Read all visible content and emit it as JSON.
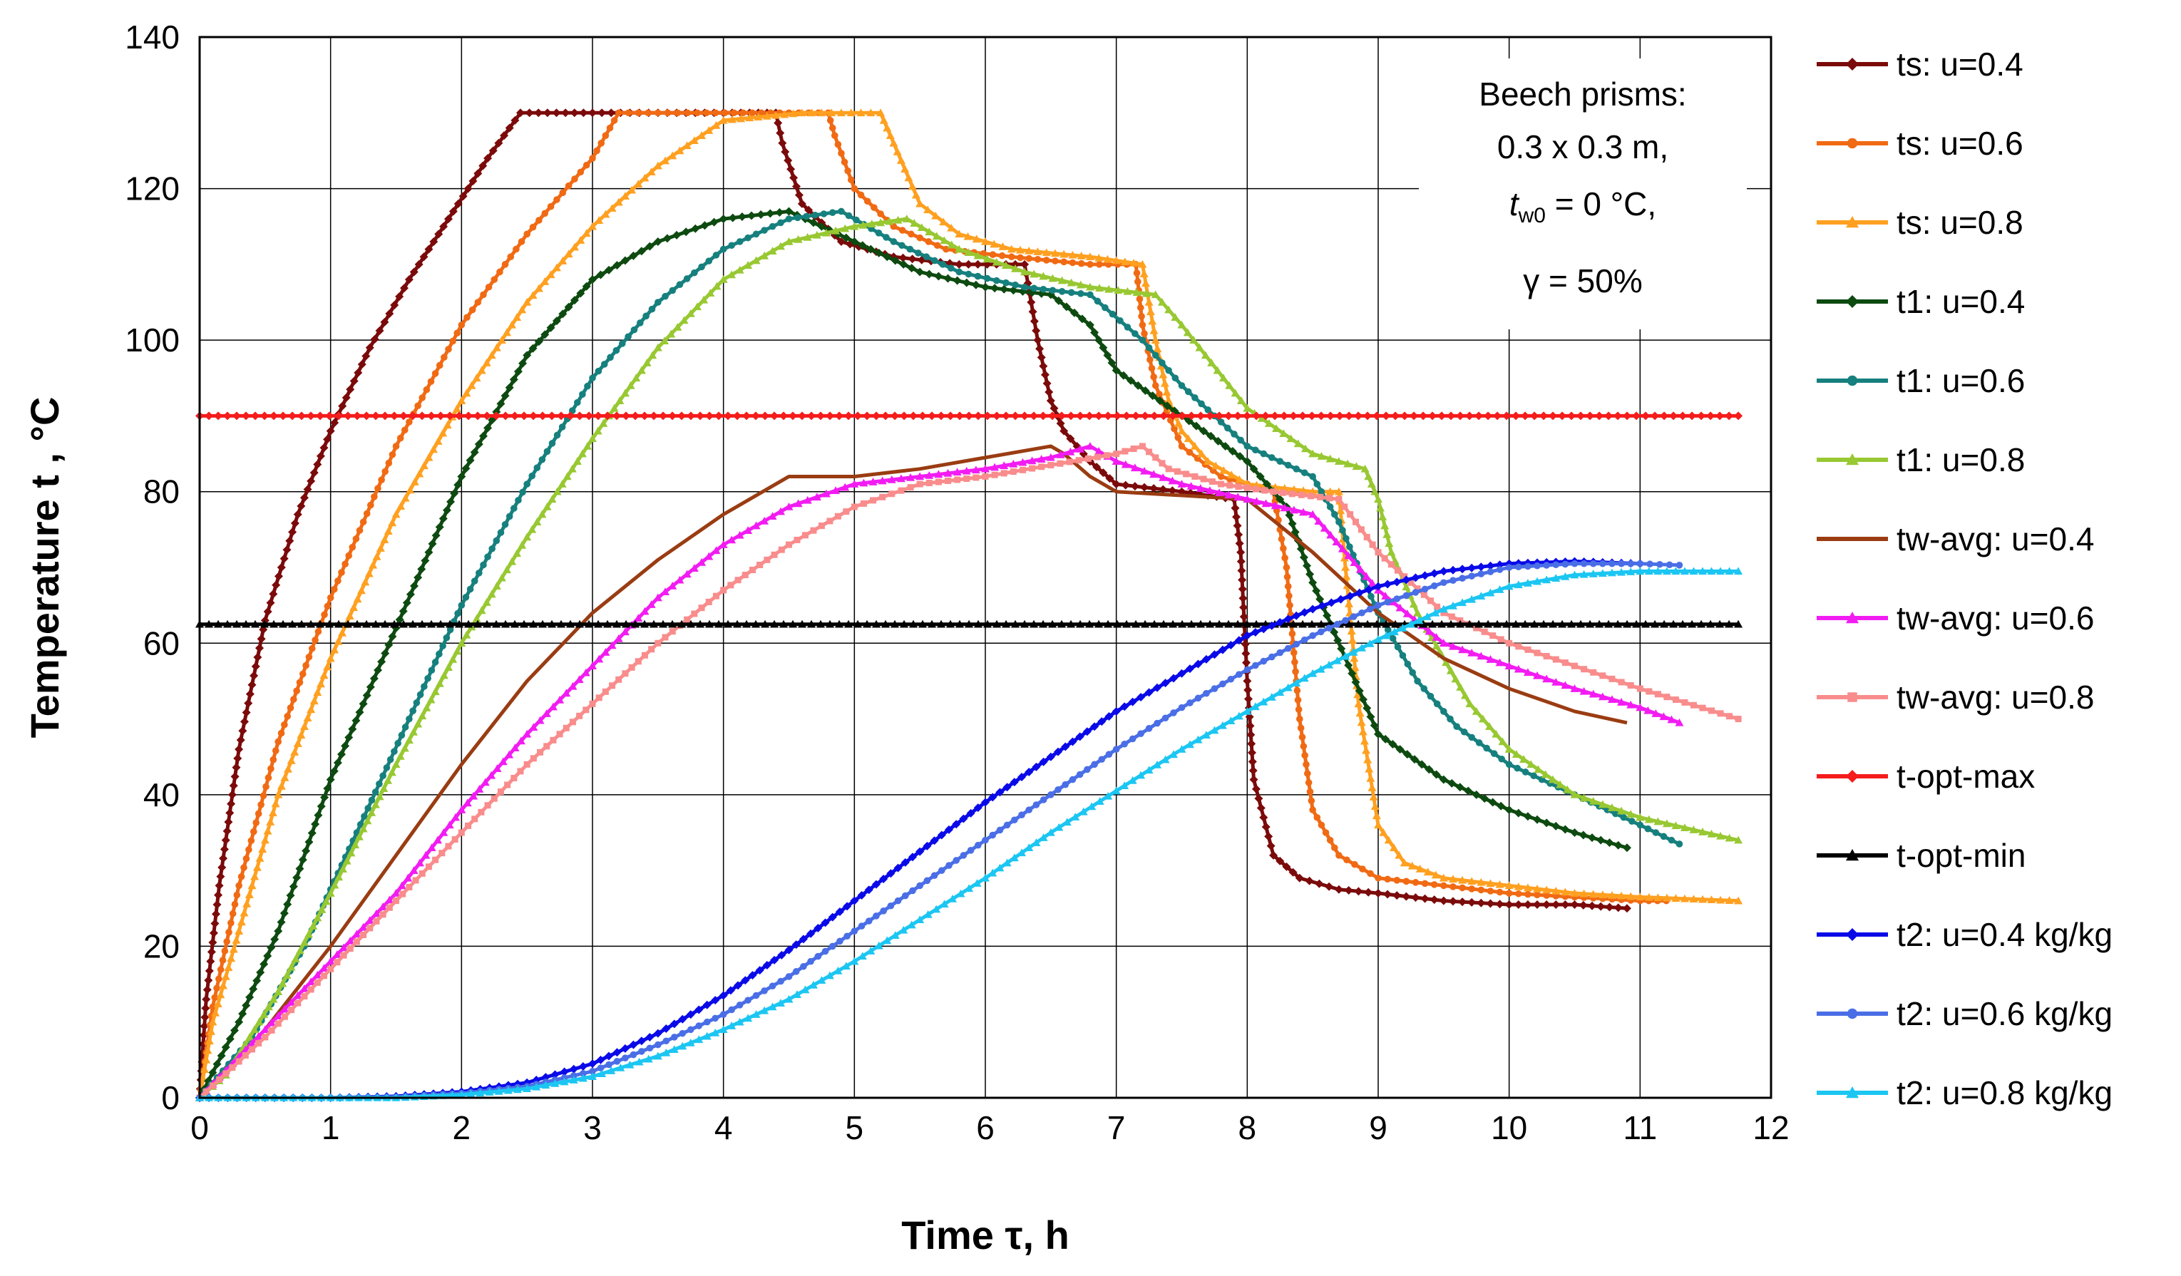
{
  "chart_data": {
    "type": "line",
    "title": "",
    "xlabel": "Time τ, h",
    "ylabel": "Temperature t , °C",
    "xlim": [
      0,
      12
    ],
    "ylim": [
      0,
      140
    ],
    "xticks": [
      0,
      1,
      2,
      3,
      4,
      5,
      6,
      7,
      8,
      9,
      10,
      11,
      12
    ],
    "yticks": [
      0,
      20,
      40,
      60,
      80,
      100,
      120,
      140
    ],
    "grid": true,
    "legend_position": "right",
    "annotation": {
      "line1": "Beech prisms:",
      "line2": "0.3 x 0.3 m,",
      "line3_var": "t",
      "line3_sub": "w0",
      "line3_rest": " = 0 °C,",
      "line4": "γ = 50%"
    },
    "series": [
      {
        "name": "ts:  u=0.4",
        "color": "#7b0a0a",
        "marker": "diamond",
        "x": [
          0,
          0.05,
          0.15,
          0.3,
          0.5,
          0.75,
          1.0,
          1.3,
          1.6,
          1.9,
          2.2,
          2.45,
          3.0,
          3.5,
          4.0,
          4.4,
          4.45,
          4.6,
          4.9,
          5.3,
          5.8,
          6.3,
          6.4,
          6.5,
          6.6,
          6.8,
          7.0,
          7.5,
          7.9,
          7.95,
          8.0,
          8.05,
          8.2,
          8.4,
          8.7,
          9.0,
          9.5,
          10.0,
          10.5,
          10.9
        ],
        "y": [
          0,
          13,
          28,
          46,
          63,
          77,
          88,
          99,
          108,
          116,
          124,
          130,
          130,
          130,
          130,
          130,
          126,
          118,
          113,
          111,
          110,
          110,
          100,
          92,
          88,
          84,
          81,
          80,
          79,
          72,
          55,
          42,
          32,
          29,
          27.5,
          27,
          26,
          25.5,
          25.5,
          25
        ]
      },
      {
        "name": "ts:  u=0.6",
        "color": "#f06a14",
        "marker": "circle",
        "x": [
          0,
          0.1,
          0.3,
          0.6,
          1.0,
          1.5,
          2.0,
          2.5,
          3.0,
          3.2,
          3.8,
          4.5,
          4.8,
          4.85,
          5.0,
          5.3,
          5.7,
          6.2,
          6.8,
          7.15,
          7.2,
          7.3,
          7.5,
          7.8,
          8.2,
          8.3,
          8.4,
          8.5,
          8.7,
          9.0,
          9.5,
          10.0,
          10.5,
          11.0,
          11.2
        ],
        "y": [
          0,
          12,
          28,
          47,
          66,
          86,
          102,
          114,
          124,
          130,
          130,
          130,
          130,
          127,
          120,
          115,
          112,
          111,
          110,
          110,
          102,
          94,
          86,
          82,
          80,
          70,
          50,
          38,
          32,
          29,
          28,
          27,
          26.5,
          26,
          26
        ]
      },
      {
        "name": "ts:  u=0.8",
        "color": "#ffa020",
        "marker": "triangle",
        "x": [
          0,
          0.1,
          0.3,
          0.6,
          1.0,
          1.5,
          2.0,
          2.5,
          3.0,
          3.5,
          4.0,
          4.6,
          5.2,
          5.3,
          5.5,
          5.8,
          6.2,
          6.8,
          7.2,
          7.3,
          7.4,
          7.5,
          7.7,
          8.0,
          8.5,
          8.7,
          8.75,
          8.85,
          9.0,
          9.2,
          9.5,
          10.0,
          10.5,
          11.0,
          11.75
        ],
        "y": [
          0,
          10,
          22,
          40,
          58,
          77,
          92,
          105,
          115,
          123,
          129,
          130,
          130,
          126,
          118,
          114,
          112,
          111,
          110,
          100,
          92,
          88,
          84,
          81,
          80,
          80,
          70,
          52,
          36,
          31,
          29,
          28,
          27,
          26.5,
          26
        ]
      },
      {
        "name": "t1: u=0.4",
        "color": "#0d4a10",
        "marker": "diamond",
        "x": [
          0,
          0.3,
          0.6,
          1.0,
          1.5,
          2.0,
          2.5,
          3.0,
          3.5,
          4.0,
          4.5,
          5.0,
          5.5,
          6.0,
          6.5,
          6.8,
          7.0,
          7.5,
          8.0,
          8.3,
          8.5,
          8.8,
          9.0,
          9.5,
          10.0,
          10.5,
          10.9
        ],
        "y": [
          0,
          10,
          22,
          42,
          62,
          82,
          98,
          108,
          113,
          116,
          117,
          113,
          109,
          107,
          106,
          102,
          96,
          90,
          84,
          78,
          68,
          56,
          48,
          42,
          38,
          35,
          33
        ]
      },
      {
        "name": "t1: u=0.6",
        "color": "#16807e",
        "marker": "circle",
        "x": [
          0,
          0.4,
          0.8,
          1.2,
          1.6,
          2.0,
          2.5,
          3.0,
          3.5,
          4.0,
          4.5,
          4.9,
          5.3,
          5.8,
          6.3,
          6.8,
          7.2,
          7.5,
          8.0,
          8.5,
          8.7,
          9.0,
          9.3,
          9.6,
          10.0,
          10.5,
          11.0,
          11.3
        ],
        "y": [
          0,
          8,
          20,
          35,
          50,
          65,
          81,
          95,
          105,
          112,
          116,
          117,
          113,
          109,
          107,
          106,
          100,
          94,
          86,
          82,
          76,
          64,
          55,
          49,
          44,
          40,
          36,
          33.5
        ]
      },
      {
        "name": "t1: u=0.8",
        "color": "#98c832",
        "marker": "triangle",
        "x": [
          0,
          0.2,
          0.6,
          1.0,
          1.5,
          2.0,
          2.5,
          3.0,
          3.5,
          4.0,
          4.5,
          5.0,
          5.4,
          5.8,
          6.3,
          6.8,
          7.3,
          7.5,
          8.0,
          8.5,
          8.9,
          9.0,
          9.1,
          9.3,
          9.7,
          10.0,
          10.5,
          11.0,
          11.75
        ],
        "y": [
          0,
          3,
          14,
          27,
          44,
          60,
          74,
          87,
          99,
          108,
          113,
          115,
          116,
          112,
          109,
          107,
          106,
          102,
          91,
          85,
          83,
          79,
          72,
          64,
          52,
          46,
          40,
          37,
          34
        ]
      },
      {
        "name": "tw-avg: u=0.4",
        "color": "#9a3c12",
        "marker": "none",
        "x": [
          0,
          0.5,
          1.0,
          1.5,
          2.0,
          2.5,
          3.0,
          3.5,
          4.0,
          4.5,
          5.0,
          5.5,
          6.0,
          6.5,
          6.6,
          6.8,
          7.0,
          7.5,
          8.0,
          8.5,
          9.0,
          9.5,
          10.0,
          10.5,
          10.9
        ],
        "y": [
          0,
          9,
          20,
          32,
          44,
          55,
          64,
          71,
          77,
          82,
          82,
          83,
          84.5,
          86,
          85,
          82,
          80,
          79.5,
          79,
          72,
          64,
          58,
          54,
          51,
          49.5
        ]
      },
      {
        "name": "tw-avg: u=0.6",
        "color": "#f21cf2",
        "marker": "triangle",
        "x": [
          0,
          0.5,
          1.0,
          1.5,
          2.0,
          2.5,
          3.0,
          3.5,
          4.0,
          4.5,
          5.0,
          5.5,
          6.0,
          6.5,
          6.8,
          7.0,
          7.5,
          8.0,
          8.5,
          9.0,
          9.5,
          10.0,
          10.5,
          11.0,
          11.3
        ],
        "y": [
          0,
          9,
          18,
          27,
          38,
          48,
          57,
          66,
          73,
          78,
          81,
          82,
          83,
          84.5,
          86,
          84,
          81,
          79,
          77,
          67,
          60,
          57,
          54,
          51.5,
          49.5
        ]
      },
      {
        "name": "tw-avg: u=0.8",
        "color": "#f98c8c",
        "marker": "square",
        "x": [
          0,
          0.5,
          1.0,
          1.5,
          2.0,
          2.5,
          3.0,
          3.5,
          4.0,
          4.5,
          5.0,
          5.5,
          6.0,
          6.5,
          7.0,
          7.2,
          7.4,
          7.8,
          8.2,
          8.7,
          9.0,
          9.5,
          10.0,
          10.5,
          11.0,
          11.75
        ],
        "y": [
          0,
          8,
          17,
          26,
          35,
          44,
          52,
          60,
          67,
          73,
          78,
          81,
          82,
          83.5,
          85,
          86,
          83,
          81,
          80,
          79,
          72,
          64,
          60,
          57,
          54,
          50
        ]
      },
      {
        "name": "t-opt-max",
        "color": "#f51c1c",
        "marker": "diamond",
        "x": [
          0,
          11.75
        ],
        "y": [
          90,
          90
        ]
      },
      {
        "name": "t-opt-min",
        "color": "#000000",
        "marker": "triangle",
        "x": [
          0,
          11.75
        ],
        "y": [
          62.5,
          62.5
        ]
      },
      {
        "name": "t2: u=0.4 kg/kg",
        "color": "#0a0ae8",
        "marker": "diamond",
        "x": [
          0,
          0.5,
          1.0,
          1.5,
          2.0,
          2.5,
          3.0,
          3.5,
          4.0,
          4.5,
          5.0,
          5.5,
          6.0,
          6.5,
          7.0,
          7.5,
          8.0,
          8.5,
          9.0,
          9.5,
          10.0,
          10.5,
          11.0
        ],
        "y": [
          0,
          0,
          0,
          0.2,
          0.8,
          2,
          4.5,
          8.5,
          13.5,
          19.5,
          26,
          32.5,
          39,
          45,
          51,
          56,
          61,
          64.5,
          67.5,
          69.5,
          70.5,
          70.8,
          70.5
        ]
      },
      {
        "name": "t2: u=0.6 kg/kg",
        "color": "#4a6ee6",
        "marker": "circle",
        "x": [
          0,
          0.5,
          1.0,
          1.5,
          2.0,
          2.5,
          3.0,
          3.5,
          4.0,
          4.5,
          5.0,
          5.5,
          6.0,
          6.5,
          7.0,
          7.5,
          8.0,
          8.5,
          9.0,
          9.5,
          10.0,
          10.5,
          11.0,
          11.3
        ],
        "y": [
          0,
          0,
          0,
          0.1,
          0.6,
          1.5,
          3.5,
          7,
          11,
          16,
          22,
          28,
          34,
          40,
          46,
          51.5,
          56.5,
          61,
          65,
          68,
          70,
          70.5,
          70.5,
          70.3
        ]
      },
      {
        "name": "t2: u=0.8 kg/kg",
        "color": "#1cc6f2",
        "marker": "triangle",
        "x": [
          0,
          0.5,
          1.0,
          1.5,
          2.0,
          2.5,
          3.0,
          3.5,
          4.0,
          4.5,
          5.0,
          5.5,
          6.0,
          6.5,
          7.0,
          7.5,
          8.0,
          8.5,
          9.0,
          9.5,
          10.0,
          10.5,
          11.0,
          11.75
        ],
        "y": [
          0,
          0,
          0,
          0,
          0.4,
          1.2,
          2.8,
          5.5,
          9,
          13,
          18,
          23.5,
          29,
          35,
          40.5,
          46,
          51,
          56,
          60.5,
          64.5,
          67.5,
          69,
          69.5,
          69.5
        ]
      }
    ]
  }
}
